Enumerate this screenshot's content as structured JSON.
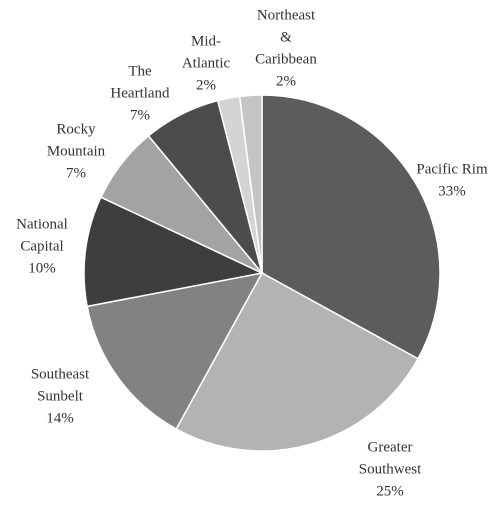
{
  "chart_data": {
    "type": "pie",
    "categories": [
      [
        "Pacific Rim"
      ],
      [
        "Greater",
        "Southwest"
      ],
      [
        "Southeast",
        "Sunbelt"
      ],
      [
        "National",
        "Capital"
      ],
      [
        "Rocky",
        "Mountain"
      ],
      [
        "The",
        "Heartland"
      ],
      [
        "Mid-",
        "Atlantic"
      ],
      [
        "Northeast",
        "&",
        "Caribbean"
      ]
    ],
    "values": [
      33,
      25,
      14,
      10,
      7,
      7,
      2,
      2
    ],
    "value_labels": [
      "33%",
      "25%",
      "14%",
      "10%",
      "7%",
      "7%",
      "2%",
      "2%"
    ],
    "colors": [
      "#5c5c5c",
      "#b3b3b3",
      "#828282",
      "#3e3e3e",
      "#a3a3a3",
      "#4c4c4c",
      "#d4d4d4",
      "#c4c4c4"
    ]
  }
}
